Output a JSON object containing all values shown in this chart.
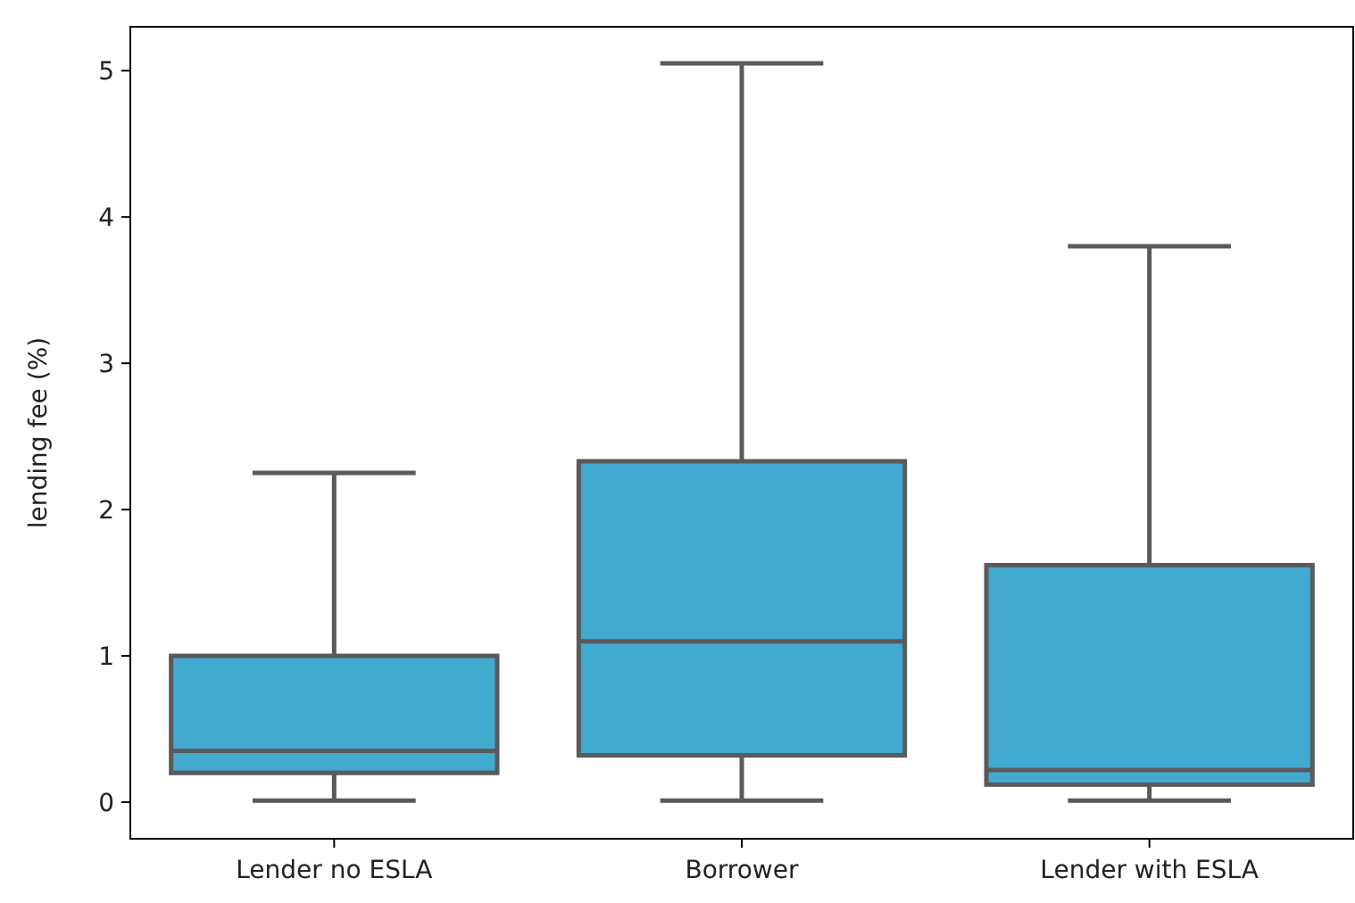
{
  "chart_data": {
    "type": "box",
    "ylabel": "lending fee (%)",
    "categories": [
      "Lender no ESLA",
      "Borrower",
      "Lender with ESLA"
    ],
    "color": "#42a9d0",
    "ylim": [
      -0.25,
      5.3
    ],
    "yticks": [
      0,
      1,
      2,
      3,
      4,
      5
    ],
    "grid": false,
    "boxes": [
      {
        "low": 0.01,
        "q1": 0.2,
        "median": 0.35,
        "q3": 1.0,
        "high": 2.25
      },
      {
        "low": 0.01,
        "q1": 0.32,
        "median": 1.1,
        "q3": 2.33,
        "high": 5.05
      },
      {
        "low": 0.01,
        "q1": 0.12,
        "median": 0.22,
        "q3": 1.62,
        "high": 3.8
      }
    ]
  }
}
